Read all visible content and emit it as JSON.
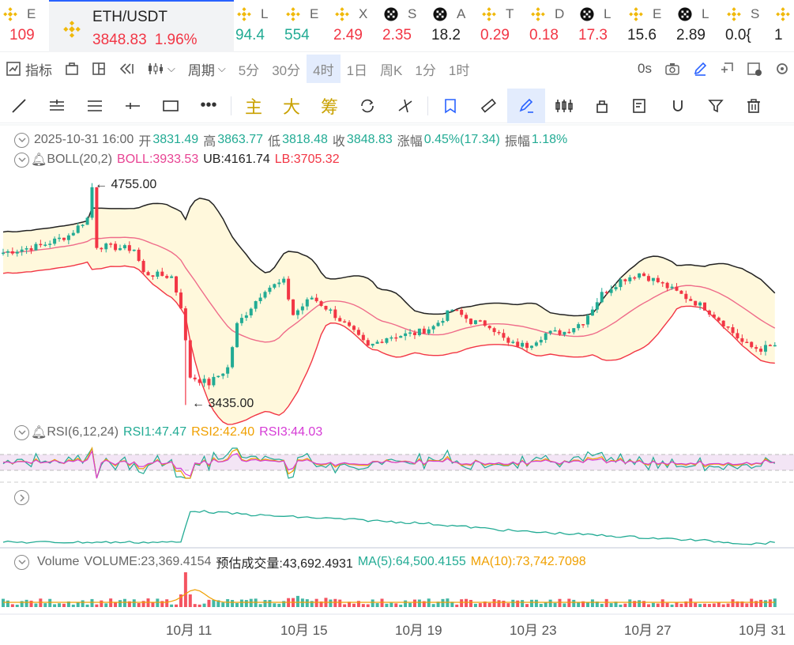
{
  "ticker": [
    {
      "name": "E",
      "value": "109",
      "color": "dn",
      "icon": "binance-icon"
    },
    {
      "name": "ETH/USDT",
      "value": "3848.83",
      "change": "1.96%",
      "color": "dn",
      "icon": "binance-icon",
      "active": true
    },
    {
      "name": "L",
      "value": "94.4",
      "color": "up",
      "icon": "binance-icon"
    },
    {
      "name": "E",
      "value": "554",
      "color": "up",
      "icon": "binance-icon"
    },
    {
      "name": "X",
      "value": "2.49",
      "color": "dn",
      "icon": "binance-icon"
    },
    {
      "name": "S",
      "value": "2.35",
      "color": "dn",
      "icon": "okx-icon"
    },
    {
      "name": "A",
      "value": "18.2",
      "color": "nt",
      "icon": "okx-icon"
    },
    {
      "name": "T",
      "value": "0.29",
      "color": "dn",
      "icon": "binance-icon"
    },
    {
      "name": "D",
      "value": "0.18",
      "color": "dn",
      "icon": "binance-icon"
    },
    {
      "name": "L",
      "value": "17.3",
      "color": "dn",
      "icon": "okx-icon"
    },
    {
      "name": "E",
      "value": "15.6",
      "color": "nt",
      "icon": "binance-icon"
    },
    {
      "name": "L",
      "value": "2.89",
      "color": "nt",
      "icon": "okx-icon"
    },
    {
      "name": "S",
      "value": "0.0{",
      "color": "nt",
      "icon": "binance-icon"
    },
    {
      "name": "",
      "value": "1",
      "color": "nt",
      "icon": "binance-icon"
    }
  ],
  "toolbar": {
    "indicators": "指标",
    "period": "周期",
    "intervals": [
      "5分",
      "30分",
      "4时",
      "1日",
      "周K",
      "1分",
      "1时"
    ],
    "active_interval": "4时",
    "countdown": "0s"
  },
  "drawing_tools": {
    "main": "主",
    "big": "大",
    "chip": "筹"
  },
  "ohlc": {
    "datetime": "2025-10-31 16:00",
    "open_label": "开",
    "open": "3831.49",
    "high_label": "高",
    "high": "3863.77",
    "low_label": "低",
    "low": "3818.48",
    "close_label": "收",
    "close": "3848.83",
    "change_label": "涨幅",
    "change": "0.45%(17.34)",
    "amp_label": "振幅",
    "amp": "1.18%"
  },
  "boll": {
    "label": "BOLL(20,2)",
    "boll": "BOLL:3933.53",
    "ub": "UB:4161.74",
    "lb": "LB:3705.32"
  },
  "rsi": {
    "label": "RSI(6,12,24)",
    "rsi1": "RSI1:47.47",
    "rsi2": "RSI2:42.40",
    "rsi3": "RSI3:44.03"
  },
  "volume": {
    "label": "Volume",
    "volume": "VOLUME:23,369.4154",
    "est": "预估成交量:43,692.4931",
    "ma5": "MA(5):64,500.4155",
    "ma10": "MA(10):73,742.7098"
  },
  "price_high_label": "← 4755.00",
  "price_low_label": "← 3435.00",
  "x_axis": [
    "10月 11",
    "10月 15",
    "10月 19",
    "10月 23",
    "10月 27",
    "10月 31"
  ],
  "colors": {
    "up": "#22ab94",
    "down": "#f23645",
    "accent": "#2962ff",
    "boll_band": "#fff8dc",
    "rsi_band": "#f3e5f5"
  }
}
